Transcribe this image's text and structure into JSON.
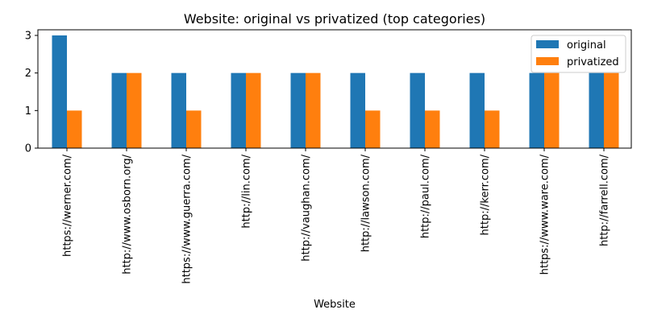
{
  "chart_data": {
    "type": "bar",
    "title": "Website: original vs privatized (top categories)",
    "xlabel": "Website",
    "ylabel": "",
    "ylim": [
      0,
      3.15
    ],
    "yticks": [
      0,
      1,
      2,
      3
    ],
    "categories": [
      "https://werner.com/",
      "http://www.osborn.org/",
      "https://www.guerra.com/",
      "http://lin.com/",
      "http://vaughan.com/",
      "http://lawson.com/",
      "http://paul.com/",
      "http://kerr.com/",
      "https://www.ware.com/",
      "http://farrell.com/"
    ],
    "series": [
      {
        "name": "original",
        "color": "#1f77b4",
        "values": [
          3,
          2,
          2,
          2,
          2,
          2,
          2,
          2,
          2,
          2
        ]
      },
      {
        "name": "privatized",
        "color": "#ff7f0e",
        "values": [
          1,
          2,
          1,
          2,
          2,
          1,
          1,
          1,
          2,
          2
        ]
      }
    ],
    "grid": false,
    "legend_position": "top-right"
  }
}
